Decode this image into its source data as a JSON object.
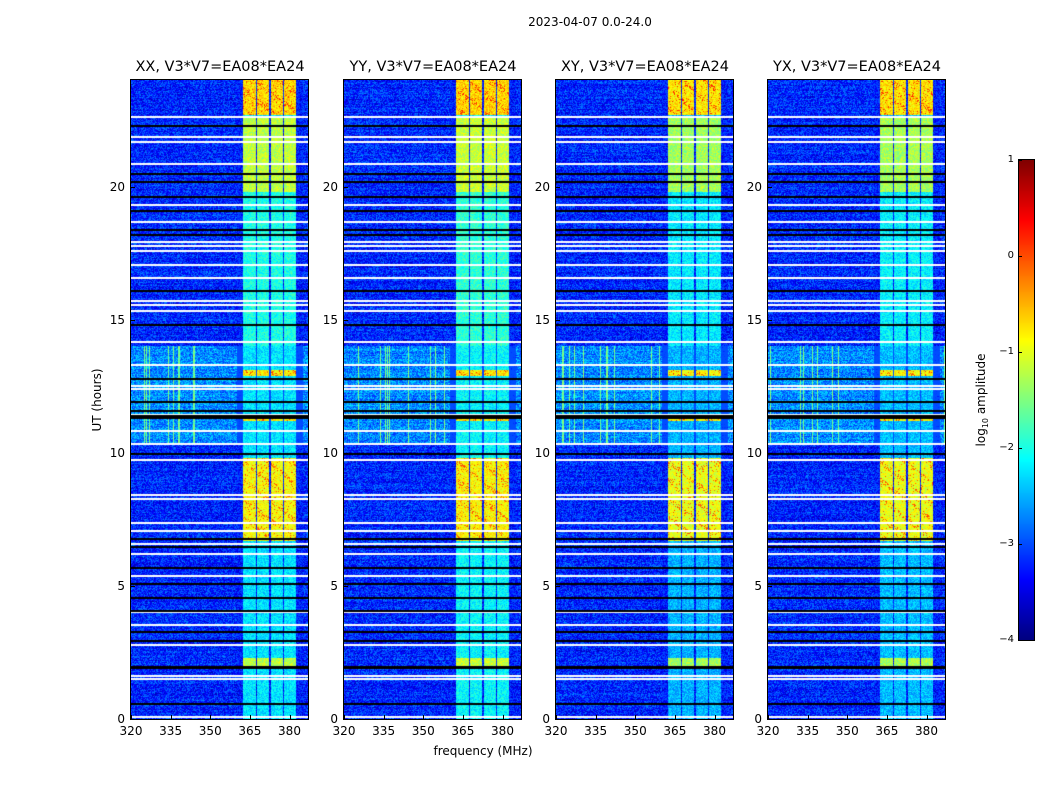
{
  "chart_data": {
    "type": "heatmap",
    "title": "2023-04-07 0.0-24.0",
    "xlabel": "frequency (MHz)",
    "ylabel": "UT (hours)",
    "xlim": [
      320,
      387
    ],
    "ylim": [
      0,
      24
    ],
    "xticks": [
      320,
      335,
      350,
      365,
      380
    ],
    "yticks": [
      0,
      5,
      10,
      15,
      20
    ],
    "grid": false,
    "panels": [
      {
        "title": "XX, V3*V7=EA08*EA24",
        "seed": 11,
        "strength": 1.0
      },
      {
        "title": "YY, V3*V7=EA08*EA24",
        "seed": 23,
        "strength": 1.05
      },
      {
        "title": "XY, V3*V7=EA08*EA24",
        "seed": 37,
        "strength": 0.9
      },
      {
        "title": "YX, V3*V7=EA08*EA24",
        "seed": 41,
        "strength": 0.92
      }
    ],
    "colorbar": {
      "label_main": "log",
      "label_sub": "10",
      "label_rest": " amplitude",
      "range": [
        -4,
        1
      ],
      "ticks": [
        1,
        0,
        -1,
        -2,
        -3,
        -4
      ],
      "tick_labels": [
        "1",
        "0",
        "−1",
        "−2",
        "−3",
        "−4"
      ],
      "colormap": "jet"
    },
    "background_level": -3.2,
    "bright_subbands_mhz": [
      [
        362.3,
        367.2
      ],
      [
        367.6,
        372.2
      ],
      [
        372.9,
        377.4
      ],
      [
        377.9,
        382.4
      ]
    ],
    "bright_time_ranges": [
      {
        "from": 22.7,
        "to": 24.0,
        "level": -0.7
      },
      {
        "from": 19.8,
        "to": 22.6,
        "level": -1.2
      },
      {
        "from": 14.0,
        "to": 19.8,
        "level": -2.0
      },
      {
        "from": 6.7,
        "to": 9.8,
        "level": -0.9
      },
      {
        "from": 2.0,
        "to": 2.3,
        "level": -1.2
      },
      {
        "from": 11.2,
        "to": 11.4,
        "level": -0.8
      },
      {
        "from": 12.9,
        "to": 13.1,
        "level": -0.8
      }
    ],
    "rfi_time_range": [
      10.3,
      14.0
    ],
    "flagged_blank_rows_hours": [
      22.65,
      21.9,
      21.7,
      20.9,
      19.35,
      18.7,
      17.95,
      17.8,
      17.6,
      17.1,
      16.6,
      15.75,
      15.6,
      15.35,
      14.2,
      13.35,
      12.45,
      12.55,
      11.45,
      10.85,
      10.35,
      9.75,
      8.45,
      8.3,
      7.4,
      7.1,
      6.6,
      6.25,
      5.4,
      4.05,
      3.55,
      2.8,
      1.65,
      1.55,
      0.1
    ],
    "flagged_zero_rows_hours": [
      22.3,
      20.5,
      20.2,
      19.65,
      19.1,
      18.4,
      18.2,
      16.1,
      14.85,
      12.8,
      11.95,
      11.6,
      11.4,
      11.35,
      10.0,
      6.8,
      6.5,
      5.7,
      5.1,
      4.6,
      4.1,
      3.3,
      2.95,
      2.0,
      1.95,
      0.6
    ]
  }
}
